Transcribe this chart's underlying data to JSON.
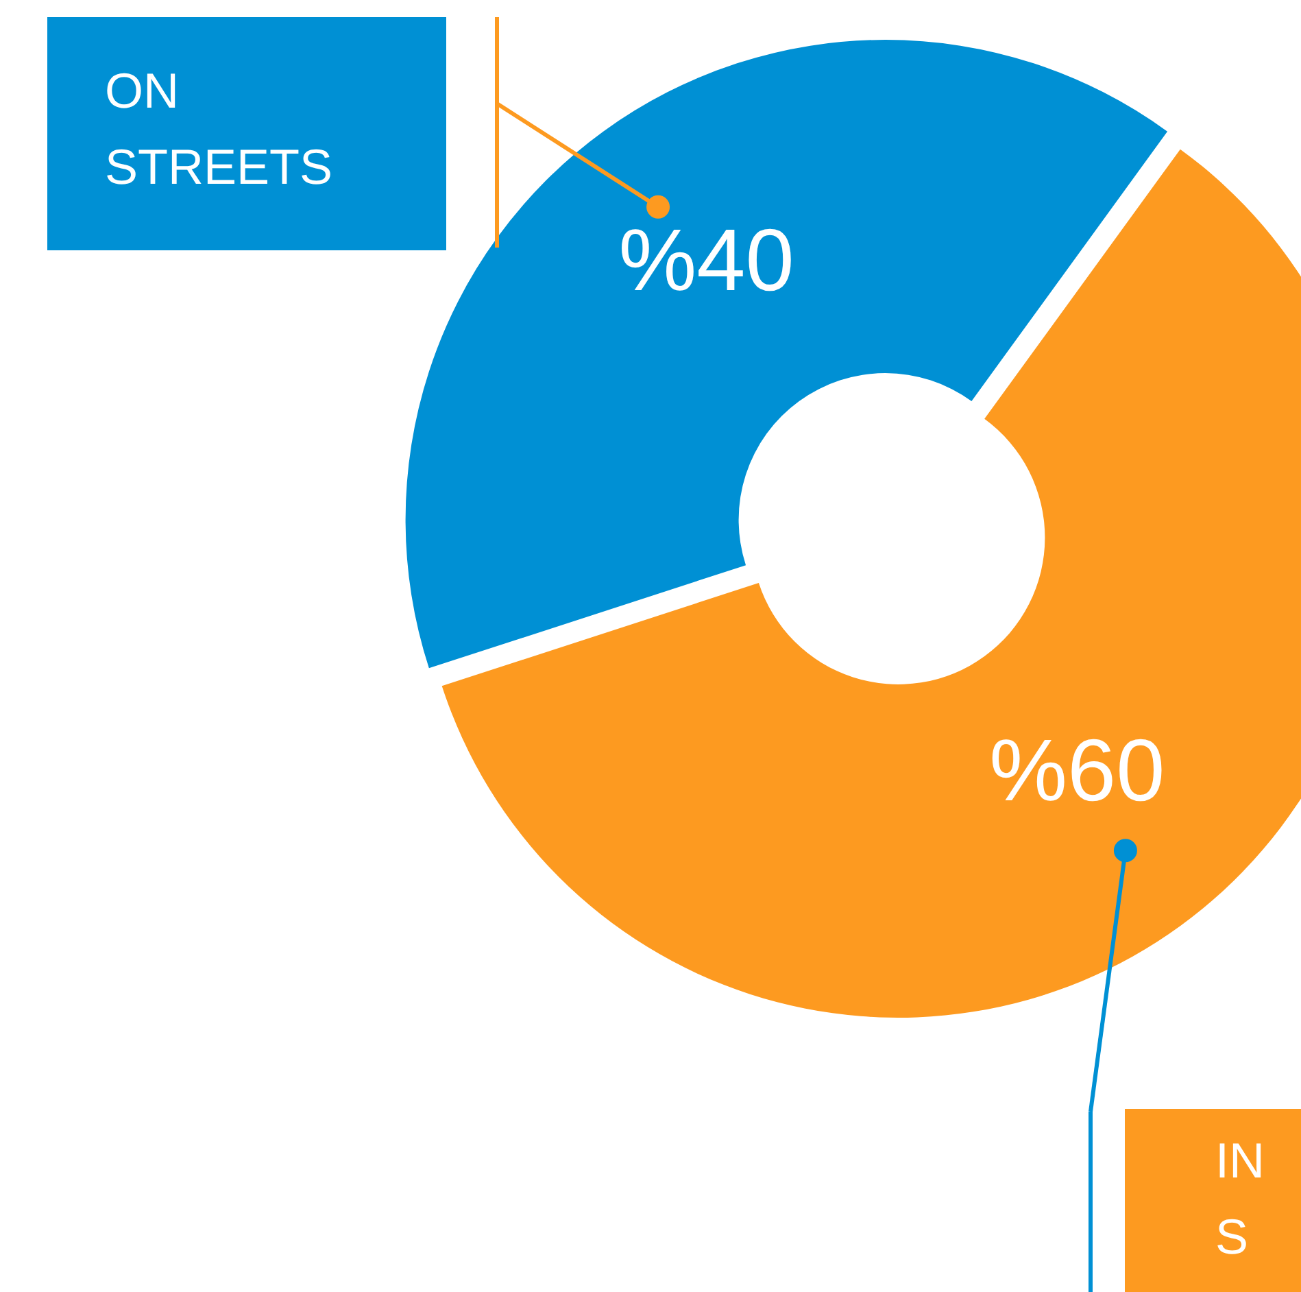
{
  "chart_data": {
    "type": "donut",
    "categories": [
      "ON STREETS",
      "IN S"
    ],
    "values": [
      40,
      60
    ],
    "colors": [
      "#0090d4",
      "#fd9a20"
    ],
    "value_labels": [
      "%40",
      "%60"
    ]
  }
}
